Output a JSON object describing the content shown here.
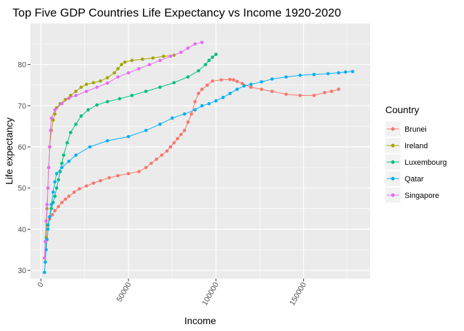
{
  "chart_data": {
    "type": "line",
    "title": "Top Five GDP Countries Life Expectancy vs Income 1920-2020",
    "xlabel": "Income",
    "ylabel": "Life expectancy",
    "xlim": [
      -6000,
      188000
    ],
    "ylim": [
      28,
      90
    ],
    "x_ticks": [
      0,
      50000,
      100000,
      150000
    ],
    "x_tick_labels": [
      "0",
      "50000",
      "100000",
      "150000"
    ],
    "y_ticks": [
      30,
      40,
      50,
      60,
      70,
      80
    ],
    "y_tick_labels": [
      "30",
      "40",
      "50",
      "60",
      "70",
      "80"
    ],
    "grid": true,
    "legend": {
      "title": "Country",
      "position": "right"
    },
    "series": [
      {
        "name": "Brunei",
        "color": "#F8766D",
        "points": [
          [
            4000,
            41
          ],
          [
            5000,
            42.5
          ],
          [
            6500,
            43.5
          ],
          [
            8000,
            44.5
          ],
          [
            10000,
            45.5
          ],
          [
            12000,
            46.5
          ],
          [
            14000,
            47.3
          ],
          [
            16000,
            48
          ],
          [
            19000,
            49
          ],
          [
            22000,
            49.8
          ],
          [
            26000,
            50.5
          ],
          [
            30000,
            51.2
          ],
          [
            34000,
            51.8
          ],
          [
            39000,
            52.5
          ],
          [
            44000,
            53
          ],
          [
            50000,
            53.5
          ],
          [
            56000,
            54
          ],
          [
            60000,
            55
          ],
          [
            63000,
            56
          ],
          [
            66000,
            57
          ],
          [
            69000,
            58
          ],
          [
            72000,
            59
          ],
          [
            74000,
            60
          ],
          [
            76000,
            61
          ],
          [
            78000,
            62
          ],
          [
            80000,
            63
          ],
          [
            82000,
            64
          ],
          [
            84000,
            66
          ],
          [
            86000,
            68
          ],
          [
            88000,
            71
          ],
          [
            90000,
            73
          ],
          [
            92000,
            74
          ],
          [
            95000,
            75
          ],
          [
            98000,
            76
          ],
          [
            103000,
            76.3
          ],
          [
            108000,
            76.4
          ],
          [
            110000,
            76.3
          ],
          [
            112000,
            75.9
          ],
          [
            115000,
            75.4
          ],
          [
            120000,
            74.5
          ],
          [
            126000,
            74
          ],
          [
            132000,
            73.5
          ],
          [
            140000,
            72.8
          ],
          [
            148000,
            72.5
          ],
          [
            156000,
            72.5
          ],
          [
            162000,
            73.2
          ],
          [
            166000,
            73.5
          ],
          [
            170000,
            74
          ]
        ]
      },
      {
        "name": "Ireland",
        "color": "#A3A500",
        "points": [
          [
            2500,
            32
          ],
          [
            3000,
            38
          ],
          [
            3500,
            45
          ],
          [
            4000,
            50
          ],
          [
            4500,
            55
          ],
          [
            5000,
            60
          ],
          [
            6000,
            64
          ],
          [
            7000,
            66.5
          ],
          [
            8000,
            68
          ],
          [
            9000,
            69.5
          ],
          [
            11000,
            70.5
          ],
          [
            14000,
            71.5
          ],
          [
            17000,
            72.5
          ],
          [
            20000,
            73.5
          ],
          [
            23000,
            74.5
          ],
          [
            26000,
            75.2
          ],
          [
            30000,
            75.6
          ],
          [
            34000,
            76
          ],
          [
            38000,
            76.8
          ],
          [
            42000,
            78
          ],
          [
            44000,
            79
          ],
          [
            46000,
            80
          ],
          [
            48000,
            80.6
          ],
          [
            52000,
            81
          ],
          [
            58000,
            81.3
          ],
          [
            64000,
            81.6
          ],
          [
            70000,
            82
          ],
          [
            76000,
            82.3
          ]
        ]
      },
      {
        "name": "Luxembourg",
        "color": "#00BF7D",
        "points": [
          [
            4000,
            41
          ],
          [
            5000,
            43
          ],
          [
            6000,
            45
          ],
          [
            7000,
            46.5
          ],
          [
            8000,
            48
          ],
          [
            9000,
            50
          ],
          [
            10000,
            52
          ],
          [
            11000,
            54
          ],
          [
            12000,
            56
          ],
          [
            13000,
            58
          ],
          [
            15000,
            61
          ],
          [
            17000,
            63.5
          ],
          [
            20000,
            65.5
          ],
          [
            23000,
            67.5
          ],
          [
            27000,
            69
          ],
          [
            32000,
            70.2
          ],
          [
            38000,
            71
          ],
          [
            45000,
            71.7
          ],
          [
            52000,
            72.5
          ],
          [
            60000,
            73.5
          ],
          [
            68000,
            74.5
          ],
          [
            76000,
            75.6
          ],
          [
            84000,
            77
          ],
          [
            90000,
            78.5
          ],
          [
            94000,
            80
          ],
          [
            96000,
            81
          ],
          [
            98000,
            81.8
          ],
          [
            100000,
            82.5
          ]
        ]
      },
      {
        "name": "Qatar",
        "color": "#00B0F6",
        "points": [
          [
            2000,
            29.5
          ],
          [
            2500,
            32
          ],
          [
            3000,
            35
          ],
          [
            3500,
            37.5
          ],
          [
            4000,
            40
          ],
          [
            5000,
            43
          ],
          [
            6000,
            46
          ],
          [
            7000,
            49
          ],
          [
            8000,
            51.5
          ],
          [
            9000,
            53.5
          ],
          [
            12000,
            55
          ],
          [
            16000,
            56.5
          ],
          [
            20000,
            58
          ],
          [
            28000,
            60
          ],
          [
            38000,
            61.5
          ],
          [
            50000,
            62.5
          ],
          [
            60000,
            64
          ],
          [
            68000,
            65.5
          ],
          [
            75000,
            67
          ],
          [
            82000,
            68
          ],
          [
            88000,
            69
          ],
          [
            92000,
            70
          ],
          [
            96000,
            70.5
          ],
          [
            100000,
            71.2
          ],
          [
            104000,
            72
          ],
          [
            108000,
            73
          ],
          [
            112000,
            74
          ],
          [
            116000,
            74.8
          ],
          [
            120000,
            75.2
          ],
          [
            126000,
            75.8
          ],
          [
            132000,
            76.5
          ],
          [
            140000,
            77
          ],
          [
            148000,
            77.4
          ],
          [
            156000,
            77.6
          ],
          [
            164000,
            77.8
          ],
          [
            170000,
            78
          ],
          [
            174000,
            78.2
          ],
          [
            178000,
            78.3
          ]
        ]
      },
      {
        "name": "Singapore",
        "color": "#E76BF3",
        "points": [
          [
            2000,
            33
          ],
          [
            2500,
            37
          ],
          [
            3000,
            42
          ],
          [
            3500,
            46
          ],
          [
            4000,
            50
          ],
          [
            4500,
            55
          ],
          [
            5000,
            60
          ],
          [
            5500,
            64
          ],
          [
            6000,
            67
          ],
          [
            8000,
            69
          ],
          [
            12000,
            70.5
          ],
          [
            16000,
            71.8
          ],
          [
            20000,
            72.5
          ],
          [
            26000,
            73.5
          ],
          [
            32000,
            74.5
          ],
          [
            38000,
            75.5
          ],
          [
            44000,
            77
          ],
          [
            50000,
            78
          ],
          [
            56000,
            79
          ],
          [
            62000,
            80
          ],
          [
            68000,
            81
          ],
          [
            74000,
            82
          ],
          [
            80000,
            83
          ],
          [
            84000,
            84
          ],
          [
            88000,
            85
          ],
          [
            92000,
            85.4
          ]
        ]
      }
    ]
  }
}
